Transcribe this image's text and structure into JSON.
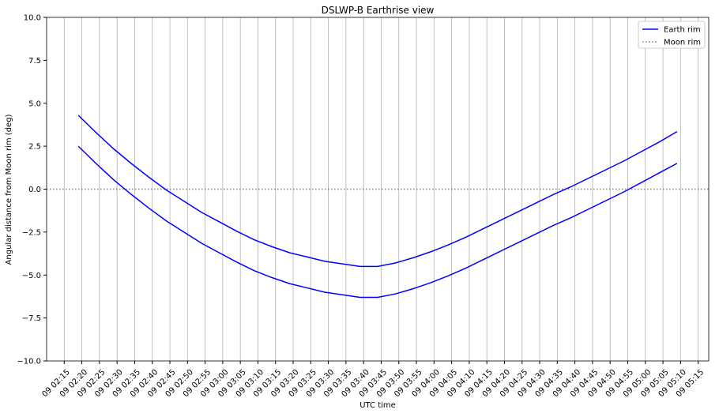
{
  "chart_data": {
    "type": "line",
    "title": "DSLWP-B Earthrise view",
    "xlabel": "UTC time",
    "ylabel": "Angular distance from Moon rim (deg)",
    "x": [
      "09 02:19",
      "09 02:24",
      "09 02:29",
      "09 02:34",
      "09 02:39",
      "09 02:44",
      "09 02:49",
      "09 02:54",
      "09 02:59",
      "09 03:04",
      "09 03:09",
      "09 03:14",
      "09 03:19",
      "09 03:24",
      "09 03:29",
      "09 03:34",
      "09 03:39",
      "09 03:44",
      "09 03:49",
      "09 03:54",
      "09 03:59",
      "09 04:04",
      "09 04:09",
      "09 04:14",
      "09 04:19",
      "09 04:24",
      "09 04:29",
      "09 04:34",
      "09 04:39",
      "09 04:44",
      "09 04:49",
      "09 04:54",
      "09 04:59",
      "09 05:04",
      "09 05:09"
    ],
    "series": [
      {
        "name": "Earth rim",
        "color": "#0000ff",
        "values": [
          4.3,
          3.3,
          2.35,
          1.5,
          0.7,
          -0.05,
          -0.7,
          -1.35,
          -1.9,
          -2.45,
          -2.95,
          -3.35,
          -3.7,
          -3.95,
          -4.2,
          -4.35,
          -4.5,
          -4.5,
          -4.3,
          -4.0,
          -3.65,
          -3.25,
          -2.8,
          -2.3,
          -1.8,
          -1.3,
          -0.8,
          -0.3,
          0.15,
          0.65,
          1.15,
          1.65,
          2.2,
          2.75,
          3.35
        ]
      },
      {
        "color": "#0000ff",
        "values": [
          2.5,
          1.5,
          0.55,
          -0.3,
          -1.1,
          -1.85,
          -2.5,
          -3.15,
          -3.7,
          -4.25,
          -4.75,
          -5.15,
          -5.5,
          -5.75,
          -6.0,
          -6.15,
          -6.3,
          -6.3,
          -6.1,
          -5.8,
          -5.45,
          -5.05,
          -4.6,
          -4.1,
          -3.6,
          -3.1,
          -2.6,
          -2.1,
          -1.65,
          -1.15,
          -0.65,
          -0.15,
          0.4,
          0.95,
          1.5
        ]
      }
    ],
    "reference_line": {
      "name": "Moon rim",
      "value": 0,
      "color": "#808080",
      "style": "dotted"
    },
    "xlim": [
      "09 02:10",
      "09 05:18"
    ],
    "xticks": [
      "09 02:15",
      "09 02:20",
      "09 02:25",
      "09 02:30",
      "09 02:35",
      "09 02:40",
      "09 02:45",
      "09 02:50",
      "09 02:55",
      "09 03:00",
      "09 03:05",
      "09 03:10",
      "09 03:15",
      "09 03:20",
      "09 03:25",
      "09 03:30",
      "09 03:35",
      "09 03:40",
      "09 03:45",
      "09 03:50",
      "09 03:55",
      "09 04:00",
      "09 04:05",
      "09 04:10",
      "09 04:15",
      "09 04:20",
      "09 04:25",
      "09 04:30",
      "09 04:35",
      "09 04:40",
      "09 04:45",
      "09 04:50",
      "09 04:55",
      "09 05:00",
      "09 05:05",
      "09 05:10",
      "09 05:15"
    ],
    "ylim": [
      -10,
      10
    ],
    "yticks": [
      {
        "value": -10,
        "label": "−10.0"
      },
      {
        "value": -7.5,
        "label": "−7.5"
      },
      {
        "value": -5,
        "label": "−5.0"
      },
      {
        "value": -2.5,
        "label": "−2.5"
      },
      {
        "value": 0,
        "label": "0.0"
      },
      {
        "value": 2.5,
        "label": "2.5"
      },
      {
        "value": 5,
        "label": "5.0"
      },
      {
        "value": 7.5,
        "label": "7.5"
      },
      {
        "value": 10,
        "label": "10.0"
      }
    ],
    "grid": "x",
    "legend": "upper right"
  }
}
